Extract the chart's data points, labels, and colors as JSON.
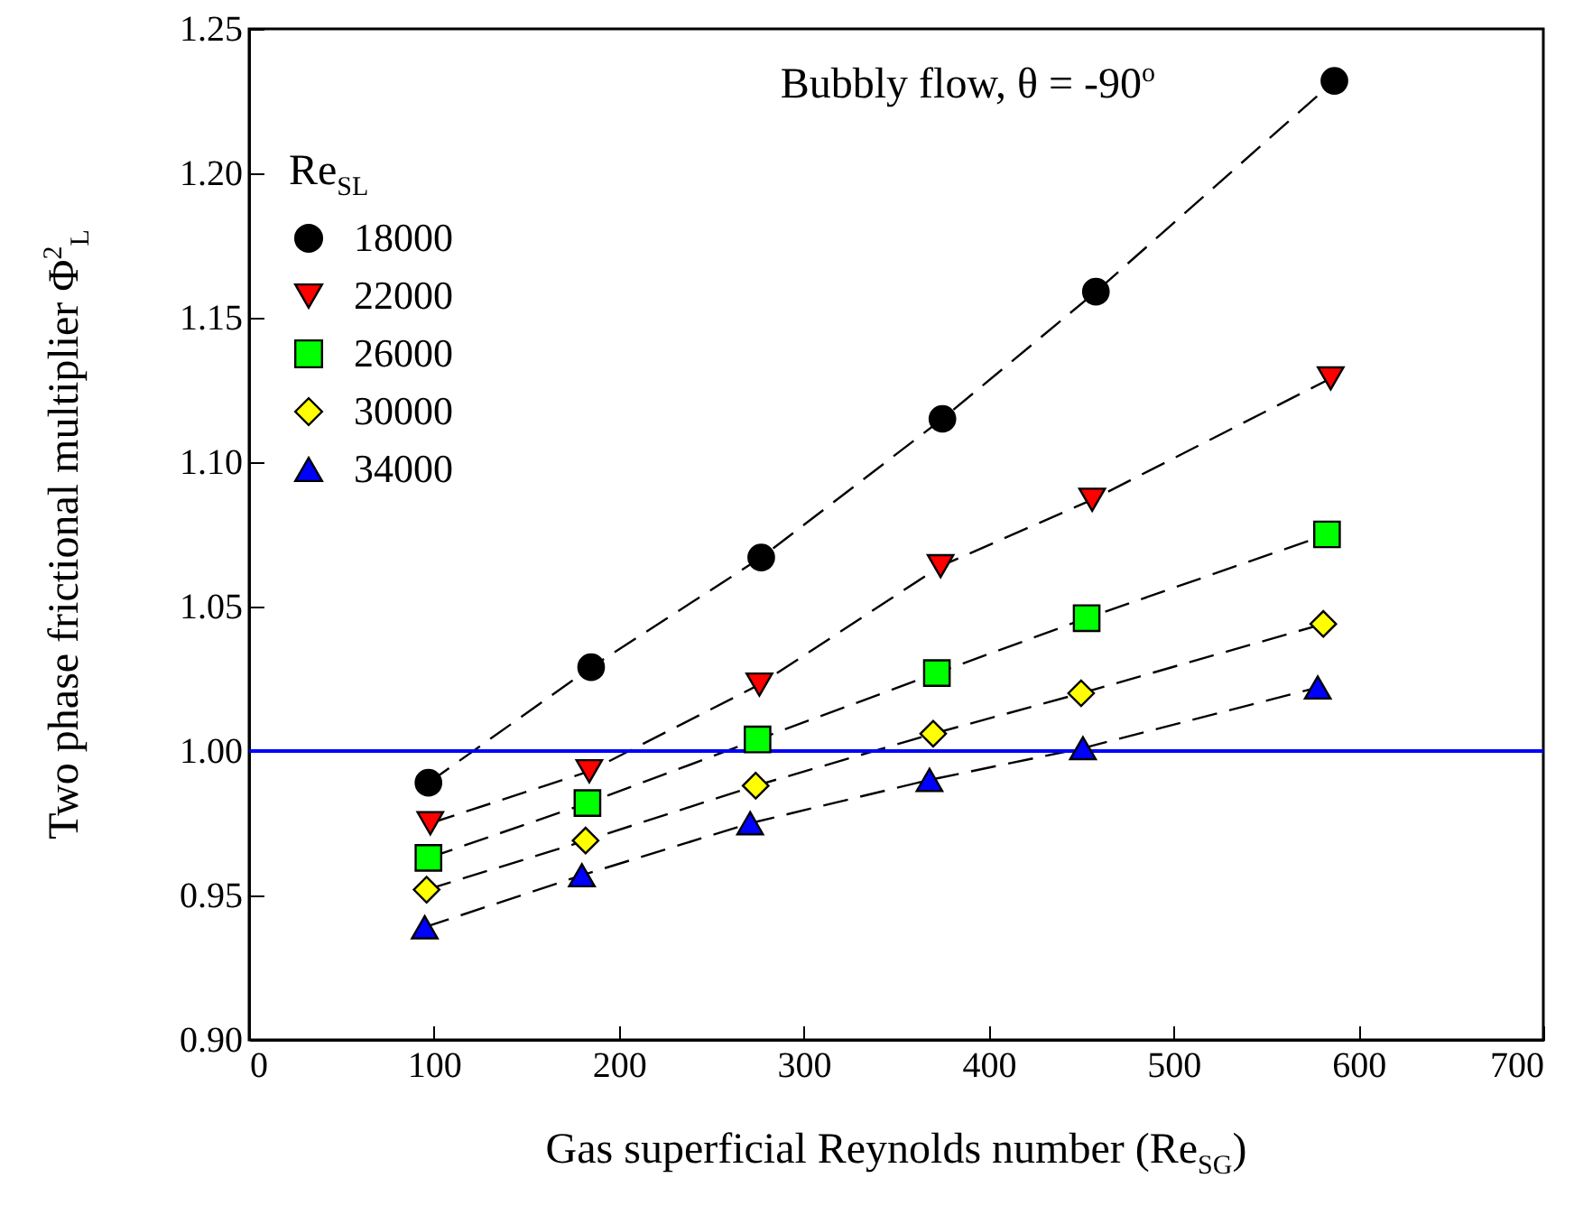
{
  "chart_data": {
    "type": "line",
    "xlabel": "Gas superficial Reynolds number (Re$_{SG}$)",
    "ylabel": "Two phase frictional multiplier Φ$^{2}$$_{L}$",
    "legend_title": "Re$_{SL}$",
    "annotations": [
      "Bubbly flow, θ = -90$^{o}$"
    ],
    "xlim": [
      0,
      700
    ],
    "xticks": [
      0,
      100,
      200,
      300,
      400,
      500,
      600,
      700
    ],
    "ylim": [
      0.9,
      1.25
    ],
    "yticks": [
      {
        "value": 0.9,
        "label": "0.90"
      },
      0.95,
      {
        "value": 1.0,
        "label": "1.00"
      },
      1.05,
      {
        "value": 1.1,
        "label": "1.10"
      },
      1.15,
      {
        "value": 1.2,
        "label": "1.20"
      },
      1.25
    ],
    "grid": false,
    "legend": "top left",
    "line_style": "dashed",
    "ref_lines": [
      {
        "axis": "y",
        "value": 1.0,
        "color": "#0000ff",
        "line_style": "solid"
      }
    ],
    "series": [
      {
        "name": "18000",
        "color": "#000000",
        "marker": "circle",
        "x": [
          97,
          185,
          277,
          375,
          458,
          587
        ],
        "values": [
          0.989,
          1.029,
          1.067,
          1.115,
          1.159,
          1.232
        ]
      },
      {
        "name": "22000",
        "color": "#ff0000",
        "marker": "triangle-down",
        "x": [
          98,
          184,
          276,
          374,
          456,
          585
        ],
        "values": [
          0.975,
          0.993,
          1.023,
          1.064,
          1.087,
          1.129
        ]
      },
      {
        "name": "26000",
        "color": "#00ff00",
        "marker": "square",
        "x": [
          97,
          183,
          275,
          372,
          453,
          583
        ],
        "values": [
          0.963,
          0.982,
          1.004,
          1.027,
          1.046,
          1.075
        ]
      },
      {
        "name": "30000",
        "color": "#ffff00",
        "marker": "diamond",
        "x": [
          96,
          182,
          274,
          370,
          450,
          581
        ],
        "values": [
          0.952,
          0.969,
          0.988,
          1.006,
          1.02,
          1.044
        ]
      },
      {
        "name": "34000",
        "color": "#0000ff",
        "marker": "triangle",
        "x": [
          95,
          180,
          271,
          368,
          451,
          578
        ],
        "values": [
          0.939,
          0.957,
          0.975,
          0.99,
          1.001,
          1.022
        ]
      }
    ]
  }
}
